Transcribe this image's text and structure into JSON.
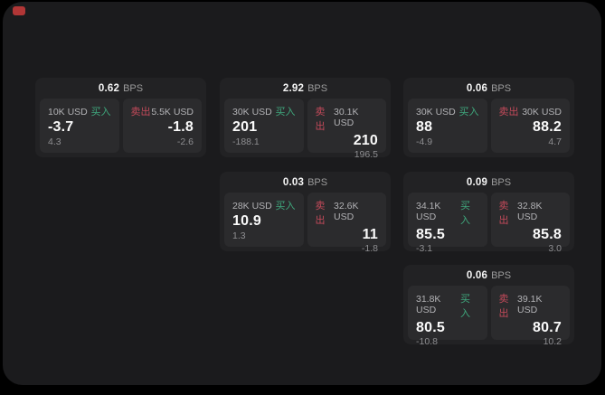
{
  "labels": {
    "bps_suffix": "BPS",
    "buy": "买入",
    "sell": "卖出"
  },
  "colors": {
    "buy_green": "#3fa87d",
    "sell_red": "#c34a5a",
    "record_dot_red": "#b13636",
    "panel_bg": "#1b1b1d",
    "card_bg": "#222224",
    "tile_bg": "#2b2b2d"
  },
  "cards": [
    {
      "bps_value": "0.62",
      "buy": {
        "notional": "10K USD",
        "value": "-3.7",
        "change": "4.3"
      },
      "sell": {
        "notional": "5.5K USD",
        "value": "-1.8",
        "change": "-2.6"
      }
    },
    {
      "bps_value": "2.92",
      "buy": {
        "notional": "30K USD",
        "value": "201",
        "change": "-188.1"
      },
      "sell": {
        "notional": "30.1K USD",
        "value": "210",
        "change": "196.5"
      }
    },
    {
      "bps_value": "0.06",
      "buy": {
        "notional": "30K USD",
        "value": "88",
        "change": "-4.9"
      },
      "sell": {
        "notional": "30K USD",
        "value": "88.2",
        "change": "4.7"
      }
    },
    {
      "bps_value": "0.03",
      "buy": {
        "notional": "28K USD",
        "value": "10.9",
        "change": "1.3"
      },
      "sell": {
        "notional": "32.6K USD",
        "value": "11",
        "change": "-1.8"
      }
    },
    {
      "bps_value": "0.09",
      "buy": {
        "notional": "34.1K USD",
        "value": "85.5",
        "change": "-3.1"
      },
      "sell": {
        "notional": "32.8K USD",
        "value": "85.8",
        "change": "3.0"
      }
    },
    {
      "bps_value": "0.06",
      "buy": {
        "notional": "31.8K USD",
        "value": "80.5",
        "change": "-10.8"
      },
      "sell": {
        "notional": "39.1K USD",
        "value": "80.7",
        "change": "10.2"
      }
    }
  ]
}
